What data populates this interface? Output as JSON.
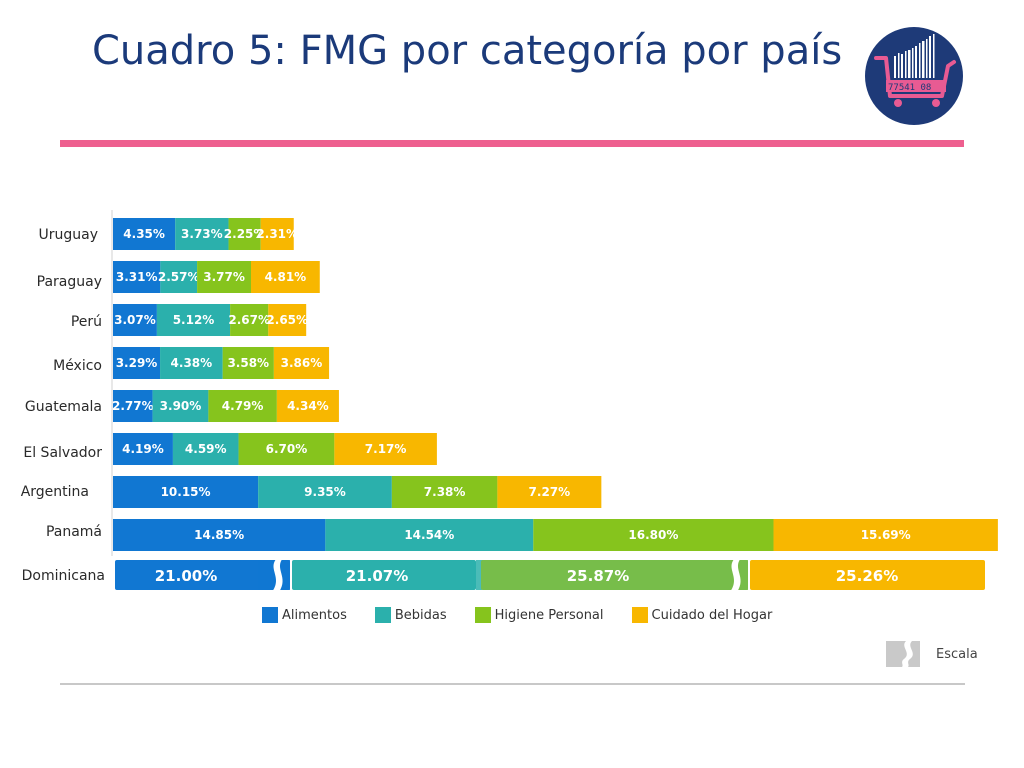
{
  "page": {
    "title": "Cuadro 5: FMG por categoría por país"
  },
  "logo": {
    "barcode_text": "77541 08",
    "colors": {
      "circle": "#1e3a78",
      "cart": "#e85b93"
    }
  },
  "colors": {
    "rule": "#ee5f8f",
    "alimentos": "#1177d2",
    "bebidas": "#2bb0ac",
    "higiene": "#86c41d",
    "hogar": "#f8b700",
    "dom_higiene": "#77bd4a"
  },
  "legend": [
    {
      "label": "Alimentos",
      "color": "#1177d2"
    },
    {
      "label": "Bebidas",
      "color": "#2bb0ac"
    },
    {
      "label": "Higiene Personal",
      "color": "#86c41d"
    },
    {
      "label": "Cuidado del Hogar",
      "color": "#f8b700"
    }
  ],
  "scale_label": "Escala",
  "chart_data": {
    "type": "bar",
    "orientation": "horizontal",
    "stacked": true,
    "categories": [
      "Uruguay",
      "Paraguay",
      "Perú",
      "México",
      "Guatemala",
      "El Salvador",
      "Argentina",
      "Panamá",
      "Dominicana"
    ],
    "series": [
      {
        "name": "Alimentos",
        "values": [
          4.35,
          3.31,
          3.07,
          3.29,
          2.77,
          4.19,
          10.15,
          14.85,
          21.0
        ],
        "labels": [
          "4.35%",
          "3.31%",
          "3.07%",
          "3.29%",
          "2.77%",
          "4.19%",
          "10.15%",
          "14.85%",
          "21.00%"
        ]
      },
      {
        "name": "Bebidas",
        "values": [
          3.73,
          2.57,
          5.12,
          4.38,
          3.9,
          4.59,
          9.35,
          14.54,
          21.07
        ],
        "labels": [
          "3.73%",
          "2.57%",
          "5.12%",
          "4.38%",
          "3.90%",
          "4.59%",
          "9.35%",
          "14.54%",
          "21.07%"
        ]
      },
      {
        "name": "Higiene Personal",
        "values": [
          2.25,
          3.77,
          2.67,
          3.58,
          4.79,
          6.7,
          7.38,
          16.8,
          25.87
        ],
        "labels": [
          "2.25%",
          "3.77%",
          "2.67%",
          "3.58%",
          "4.79%",
          "6.70%",
          "7.38%",
          "16.80%",
          "25.87%"
        ]
      },
      {
        "name": "Cuidado del Hogar",
        "values": [
          2.31,
          4.81,
          2.65,
          3.86,
          4.34,
          7.17,
          7.27,
          15.69,
          25.26
        ],
        "labels": [
          "2.31%",
          "4.81%",
          "2.65%",
          "3.86%",
          "4.34%",
          "7.17%",
          "7.27%",
          "15.69%",
          "25.26%"
        ]
      }
    ],
    "broken_scale_category": "Dominicana",
    "legend_position": "bottom",
    "grid": false
  }
}
